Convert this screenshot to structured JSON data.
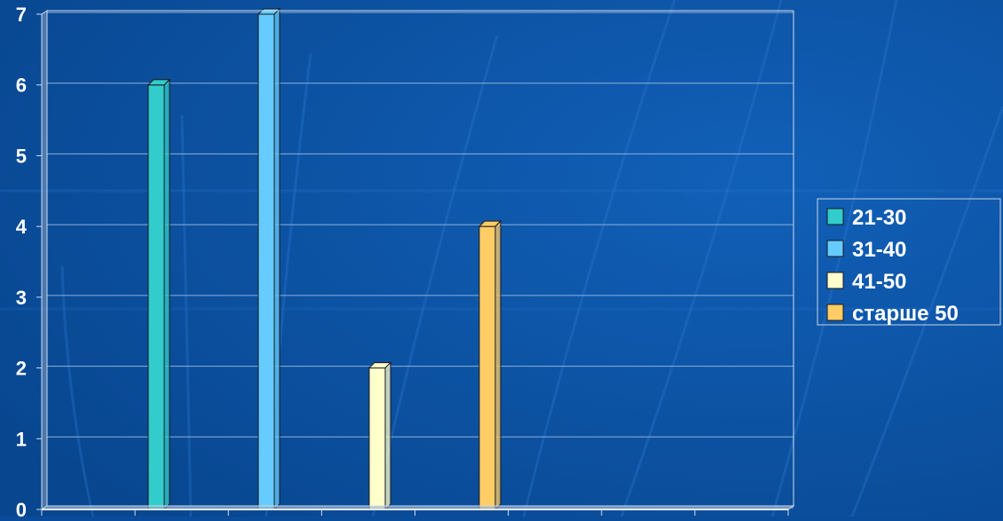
{
  "chart_data": {
    "type": "bar",
    "title": "",
    "xlabel": "",
    "ylabel": "",
    "ylim": [
      0,
      7
    ],
    "yticks": [
      "0",
      "1",
      "2",
      "3",
      "4",
      "5",
      "6",
      "7"
    ],
    "grid": true,
    "legend_position": "right",
    "series": [
      {
        "name": "21-30",
        "value": 6,
        "color": "#33cccc"
      },
      {
        "name": "31-40",
        "value": 7,
        "color": "#66ccff"
      },
      {
        "name": "41-50",
        "value": 2,
        "color": "#ffffcc"
      },
      {
        "name": "старше 50",
        "value": 4,
        "color": "#ffcc66"
      }
    ]
  },
  "colors": {
    "background": "#0a4c9c",
    "gridline": "#8fb0d8",
    "text": "#ffffff"
  }
}
